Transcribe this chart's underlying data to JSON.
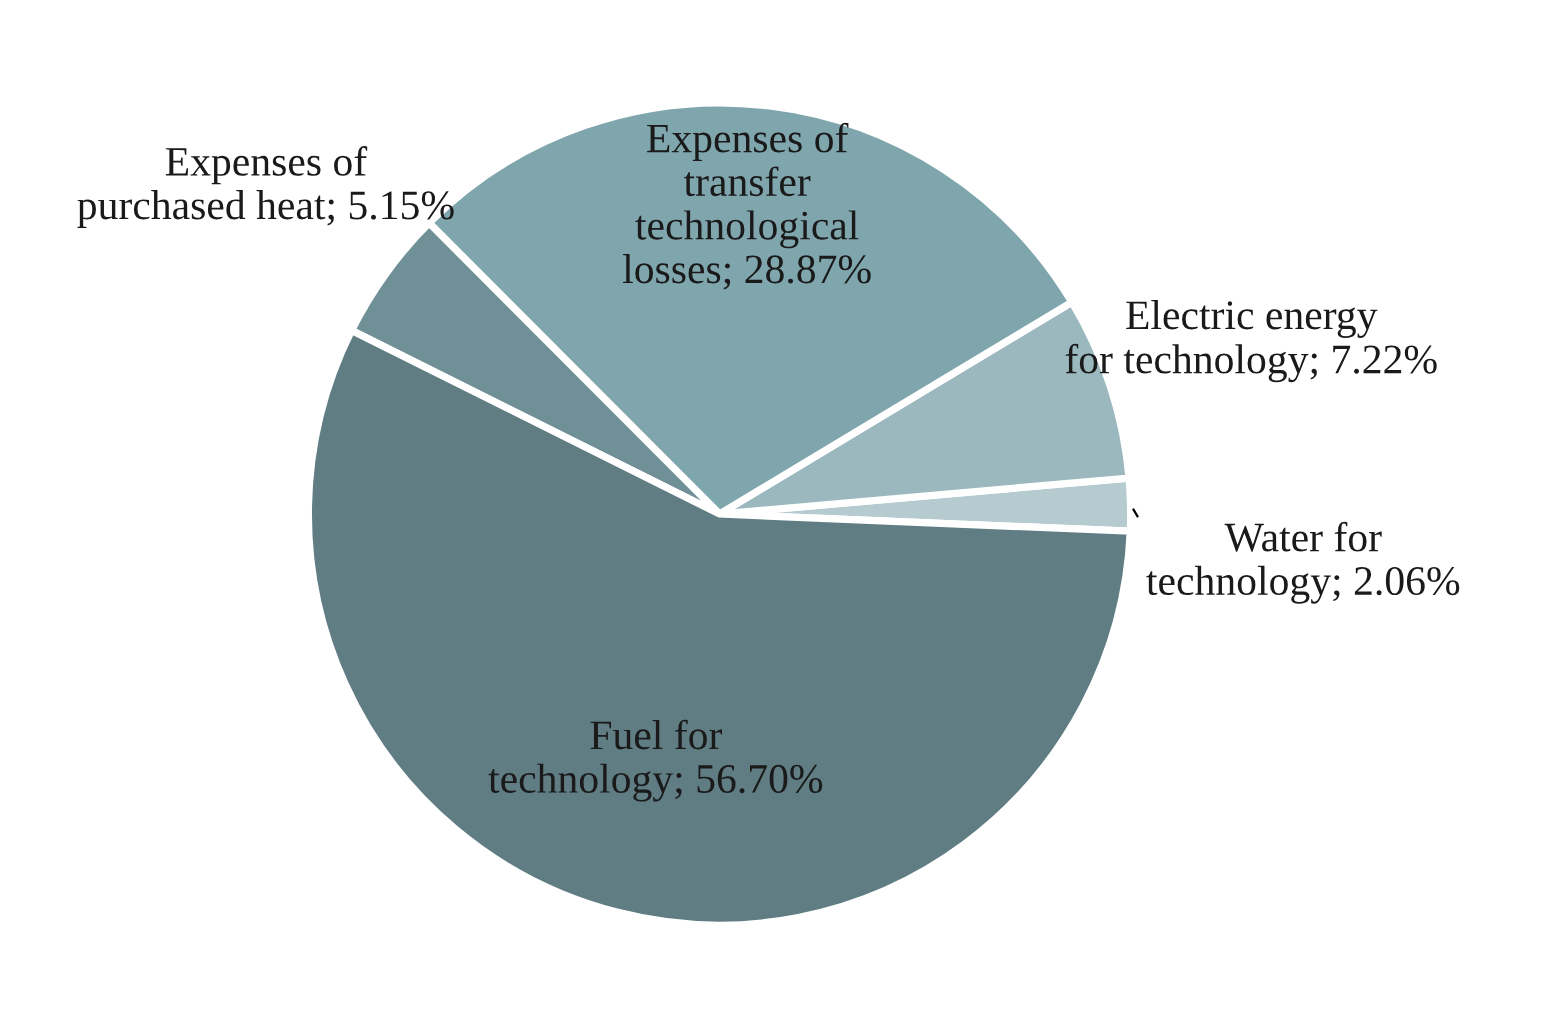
{
  "chart_data": {
    "type": "pie",
    "categories": [
      "Water for\ntechnology",
      "Electric energy\nfor technology",
      "Expenses of\ntransfer\ntechnological\nlosses",
      "Expenses of\npurchased heat",
      "Fuel for\ntechnology"
    ],
    "values": [
      2.06,
      7.22,
      28.87,
      5.15,
      56.7
    ],
    "value_labels": [
      "2.06%",
      "7.22%",
      "28.87%",
      "5.15%",
      "56.70%"
    ],
    "colors": [
      "#b5cbcf",
      "#9ab8be",
      "#7fa5ad",
      "#6f9097",
      "#5f7d83"
    ],
    "legend": false
  }
}
